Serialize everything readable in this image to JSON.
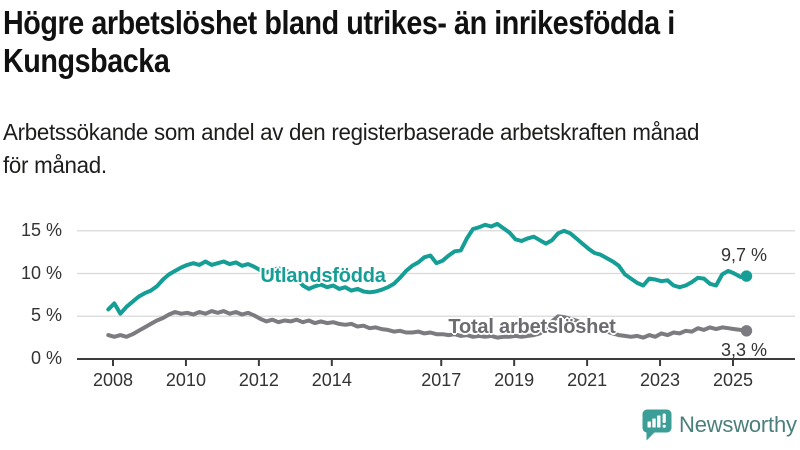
{
  "header": {
    "title_lines": [
      "Högre arbetslöshet bland utrikes- än inrikesfödda i",
      "Kungsbacka"
    ],
    "subtitle_lines": [
      "Arbetssökande som andel av den registerbaserade arbetskraften månad",
      "för månad."
    ]
  },
  "chart_data": {
    "type": "line",
    "title": "Högre arbetslöshet bland utrikes- än inrikesfödda i Kungsbacka",
    "subtitle": "Arbetssökande som andel av den registerbaserade arbetskraften månad för månad.",
    "unit": "%",
    "grid": true,
    "legend_position": "inline-labels",
    "x_ticks": [
      2008,
      2010,
      2012,
      2014,
      2017,
      2019,
      2021,
      2023,
      2025
    ],
    "y_ticks": [
      0,
      5,
      10,
      15
    ],
    "y_tick_labels": [
      "0 %",
      "5 %",
      "10 %",
      "15 %"
    ],
    "x_range": [
      2007.0,
      2026.7
    ],
    "y_range": [
      0,
      16.8
    ],
    "series": [
      {
        "name": "Utlandsfödda",
        "color": "#149e96",
        "end_label": "9,7 %",
        "end_value": 9.7,
        "x_start": 2007.87,
        "x_step": 0.16667,
        "values": [
          5.8,
          6.5,
          5.3,
          6.1,
          6.7,
          7.3,
          7.7,
          8.0,
          8.5,
          9.3,
          9.9,
          10.3,
          10.7,
          11.0,
          11.2,
          11.0,
          11.4,
          11.0,
          11.2,
          11.4,
          11.1,
          11.3,
          10.9,
          11.1,
          10.8,
          10.4,
          10.1,
          10.4,
          10.6,
          10.4,
          10.1,
          9.5,
          8.6,
          8.2,
          8.5,
          8.7,
          8.4,
          8.6,
          8.2,
          8.4,
          8.0,
          8.2,
          7.9,
          7.8,
          7.9,
          8.1,
          8.4,
          8.8,
          9.5,
          10.3,
          10.9,
          11.3,
          11.9,
          12.1,
          11.2,
          11.5,
          12.1,
          12.6,
          12.7,
          14.1,
          15.2,
          15.4,
          15.7,
          15.5,
          15.8,
          15.3,
          14.8,
          14.0,
          13.8,
          14.1,
          14.3,
          13.9,
          13.5,
          13.9,
          14.7,
          15.0,
          14.7,
          14.1,
          13.5,
          12.9,
          12.4,
          12.2,
          11.8,
          11.4,
          10.9,
          9.9,
          9.4,
          8.9,
          8.6,
          9.4,
          9.3,
          9.1,
          9.2,
          8.6,
          8.4,
          8.6,
          9.0,
          9.5,
          9.4,
          8.8,
          8.6,
          9.9,
          10.3,
          10.0,
          9.6,
          9.7
        ]
      },
      {
        "name": "Total arbetslöshet",
        "color": "#7b7b80",
        "end_label": "3,3 %",
        "end_value": 3.3,
        "x_start": 2007.87,
        "x_step": 0.16667,
        "values": [
          2.8,
          2.6,
          2.8,
          2.6,
          2.9,
          3.3,
          3.7,
          4.1,
          4.5,
          4.8,
          5.2,
          5.5,
          5.3,
          5.4,
          5.2,
          5.5,
          5.3,
          5.6,
          5.4,
          5.6,
          5.3,
          5.5,
          5.2,
          5.4,
          5.1,
          4.7,
          4.4,
          4.6,
          4.3,
          4.5,
          4.4,
          4.6,
          4.3,
          4.5,
          4.2,
          4.4,
          4.2,
          4.3,
          4.1,
          4.0,
          4.1,
          3.8,
          3.9,
          3.6,
          3.7,
          3.5,
          3.4,
          3.2,
          3.3,
          3.1,
          3.1,
          3.2,
          3.0,
          3.1,
          2.9,
          2.9,
          2.8,
          2.9,
          2.7,
          2.8,
          2.6,
          2.7,
          2.6,
          2.7,
          2.5,
          2.6,
          2.6,
          2.7,
          2.6,
          2.7,
          2.8,
          3.0,
          3.4,
          4.4,
          5.0,
          4.9,
          4.7,
          4.5,
          4.2,
          3.9,
          3.6,
          3.4,
          3.2,
          3.0,
          2.8,
          2.7,
          2.6,
          2.7,
          2.5,
          2.8,
          2.6,
          3.0,
          2.8,
          3.1,
          3.0,
          3.3,
          3.2,
          3.6,
          3.4,
          3.7,
          3.5,
          3.7,
          3.6,
          3.5,
          3.4,
          3.3
        ]
      }
    ]
  },
  "footer": {
    "brand": "Newsworthy",
    "brand_icon": "newsworthy-speech-bubble-chart-icon",
    "brand_color": "#3b9e97"
  }
}
